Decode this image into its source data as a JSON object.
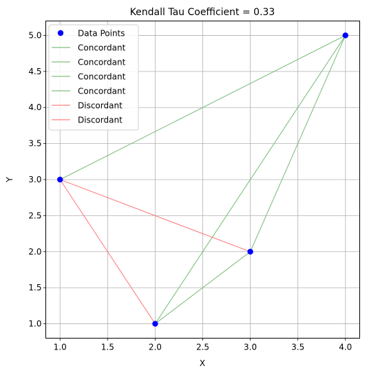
{
  "chart_data": {
    "type": "scatter",
    "title": "Kendall Tau Coefficient = 0.33",
    "xlabel": "X",
    "ylabel": "Y",
    "xlim": [
      0.85,
      4.15
    ],
    "ylim": [
      0.8,
      5.2
    ],
    "grid": true,
    "legend_position": "top-left",
    "x_ticks": [
      "1.0",
      "1.5",
      "2.0",
      "2.5",
      "3.0",
      "3.5",
      "4.0"
    ],
    "x_tick_values": [
      1.0,
      1.5,
      2.0,
      2.5,
      3.0,
      3.5,
      4.0
    ],
    "y_ticks": [
      "1.0",
      "1.5",
      "2.0",
      "2.5",
      "3.0",
      "3.5",
      "4.0",
      "4.5",
      "5.0"
    ],
    "y_tick_values": [
      1.0,
      1.5,
      2.0,
      2.5,
      3.0,
      3.5,
      4.0,
      4.5,
      5.0
    ],
    "points": {
      "name": "Data Points",
      "color": "#0000ff",
      "x": [
        1,
        2,
        3,
        4
      ],
      "y": [
        3,
        1,
        2,
        5
      ]
    },
    "pairs": [
      {
        "kind": "Concordant",
        "color": "#7fbf7f",
        "from": [
          1,
          3
        ],
        "to": [
          4,
          5
        ]
      },
      {
        "kind": "Concordant",
        "color": "#7fbf7f",
        "from": [
          2,
          1
        ],
        "to": [
          3,
          2
        ]
      },
      {
        "kind": "Concordant",
        "color": "#7fbf7f",
        "from": [
          2,
          1
        ],
        "to": [
          4,
          5
        ]
      },
      {
        "kind": "Concordant",
        "color": "#7fbf7f",
        "from": [
          3,
          2
        ],
        "to": [
          4,
          5
        ]
      },
      {
        "kind": "Discordant",
        "color": "#ff7f7f",
        "from": [
          1,
          3
        ],
        "to": [
          2,
          1
        ]
      },
      {
        "kind": "Discordant",
        "color": "#ff7f7f",
        "from": [
          1,
          3
        ],
        "to": [
          3,
          2
        ]
      }
    ],
    "legend": [
      {
        "label": "Data Points",
        "marker": "dot",
        "color": "#0000ff"
      },
      {
        "label": "Concordant",
        "marker": "line",
        "color": "#7fbf7f"
      },
      {
        "label": "Concordant",
        "marker": "line",
        "color": "#7fbf7f"
      },
      {
        "label": "Concordant",
        "marker": "line",
        "color": "#7fbf7f"
      },
      {
        "label": "Concordant",
        "marker": "line",
        "color": "#7fbf7f"
      },
      {
        "label": "Discordant",
        "marker": "line",
        "color": "#ff7f7f"
      },
      {
        "label": "Discordant",
        "marker": "line",
        "color": "#ff7f7f"
      }
    ]
  }
}
